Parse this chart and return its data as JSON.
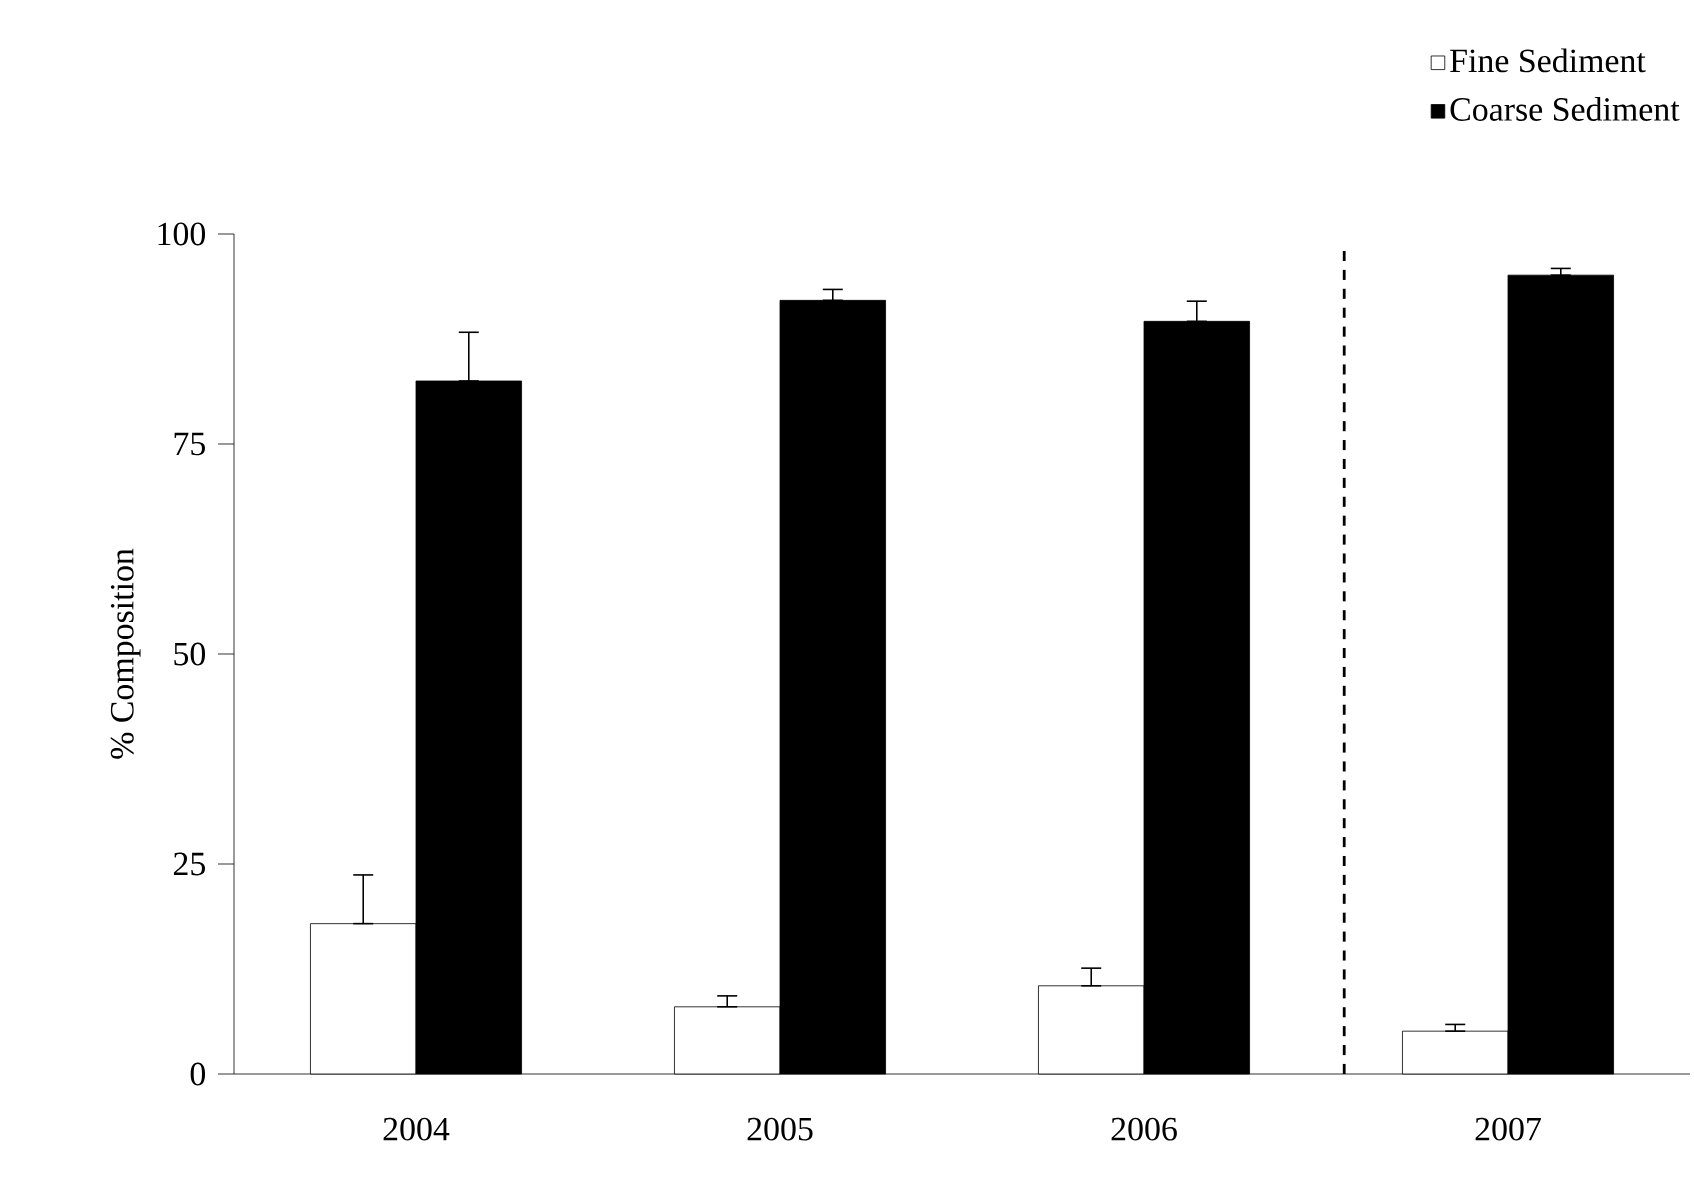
{
  "chart_data": {
    "type": "bar",
    "categories": [
      "2004",
      "2005",
      "2006",
      "2007"
    ],
    "ylabel": "% Composition",
    "ylim": [
      0,
      100
    ],
    "yticks": [
      0,
      25,
      50,
      75,
      100
    ],
    "series": [
      {
        "name": "Fine Sediment",
        "color": "#ffffff",
        "values": [
          17.9,
          8.0,
          10.5,
          5.1
        ],
        "errors": [
          [
            17.9,
            23.7
          ],
          [
            8.0,
            9.3
          ],
          [
            10.5,
            12.6
          ],
          [
            5.1,
            5.9
          ]
        ]
      },
      {
        "name": "Coarse Sediment",
        "color": "#000000",
        "values": [
          82.5,
          92.1,
          89.6,
          95.1
        ],
        "errors": [
          [
            82.5,
            88.3
          ],
          [
            92.1,
            93.4
          ],
          [
            89.6,
            92.0
          ],
          [
            95.1,
            95.9
          ]
        ]
      }
    ],
    "legend": "top right",
    "grid": false
  }
}
